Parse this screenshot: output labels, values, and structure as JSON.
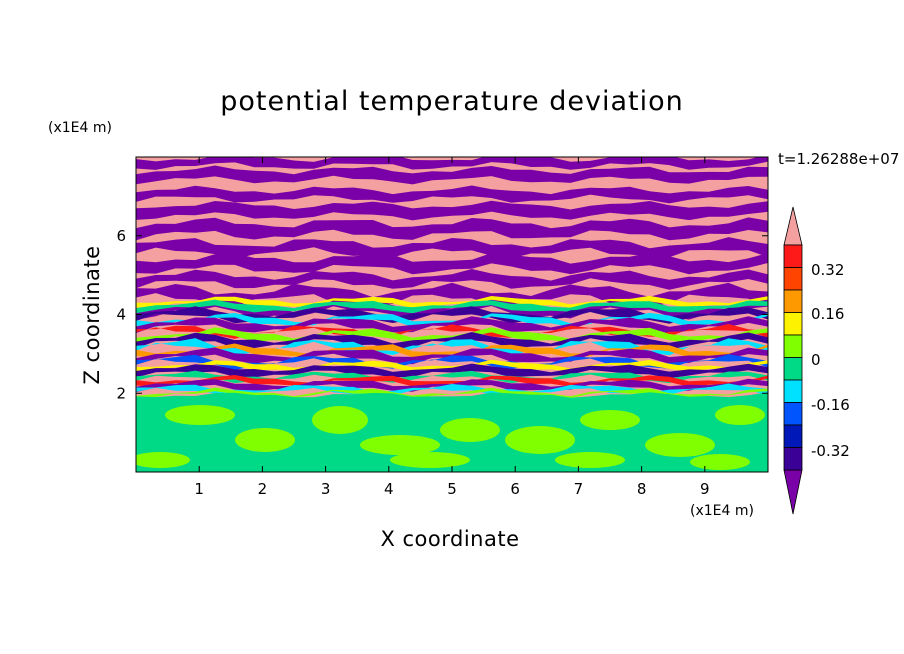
{
  "chart_data": {
    "type": "heatmap",
    "title": "potential temperature deviation",
    "xlabel": "X coordinate",
    "ylabel": "Z coordinate",
    "x_unit": "(x1E4 m)",
    "y_unit": "(x1E4 m)",
    "time_label": "t=1.26288e+07",
    "xlim": [
      0,
      10
    ],
    "ylim": [
      0,
      8
    ],
    "x_ticks": [
      "1",
      "2",
      "3",
      "4",
      "5",
      "6",
      "7",
      "8",
      "9"
    ],
    "y_ticks": [
      "2",
      "4",
      "6"
    ],
    "colorbar": {
      "colors": [
        "#7a00a8",
        "#3b0096",
        "#0018b8",
        "#0055ff",
        "#00e0ff",
        "#00d985",
        "#80ff00",
        "#fff200",
        "#ff9900",
        "#ff4400",
        "#ff1a1a",
        "#f4a0a0"
      ],
      "labels": [
        "-0.32",
        "-0.16",
        "0",
        "0.16",
        "0.32"
      ],
      "extend": "both"
    }
  }
}
